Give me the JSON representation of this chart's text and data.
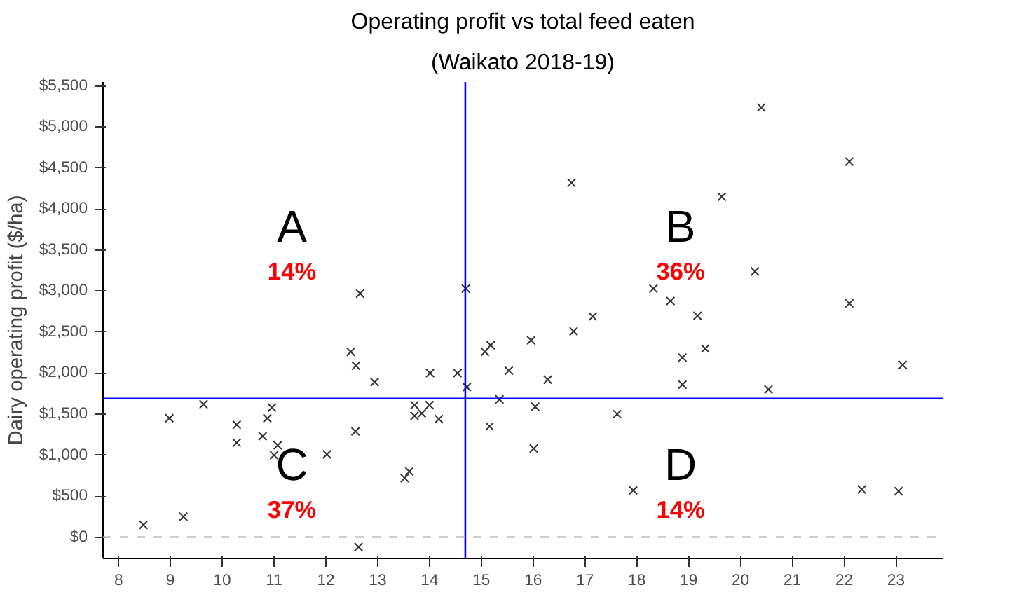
{
  "chart_data": {
    "type": "scatter",
    "title": "Operating profit vs total feed eaten",
    "subtitle": "(Waikato 2018-19)",
    "ylabel": "Dairy operating profit ($/ha)",
    "x": [
      8.48,
      8.98,
      9.25,
      9.64,
      10.28,
      10.28,
      10.78,
      10.87,
      10.96,
      11.0,
      11.07,
      12.02,
      12.48,
      12.58,
      12.94,
      12.57,
      12.63,
      12.66,
      13.52,
      13.61,
      13.71,
      13.71,
      13.85,
      14.0,
      14.18,
      14.01,
      14.54,
      14.72,
      14.7,
      15.07,
      15.18,
      15.96,
      16.78,
      15.53,
      16.28,
      15.35,
      16.04,
      15.16,
      16.01,
      17.62,
      17.93,
      18.88,
      19.32,
      18.88,
      20.54,
      23.13,
      22.34,
      23.05,
      20.4,
      22.1,
      19.64,
      16.74,
      20.28,
      22.1,
      18.32,
      18.65,
      19.17,
      17.15
    ],
    "series": [
      {
        "color": "#333333",
        "values": [
          150,
          1450,
          250,
          1620,
          1370,
          1150,
          1230,
          1450,
          1580,
          1000,
          1120,
          1010,
          2260,
          2090,
          1890,
          1290,
          -120,
          2970,
          720,
          800,
          1610,
          1480,
          1510,
          1610,
          1440,
          2000,
          2000,
          1830,
          3030,
          2260,
          2340,
          2400,
          2510,
          2030,
          1920,
          1680,
          1590,
          1350,
          1080,
          1500,
          570,
          2190,
          2300,
          1860,
          1800,
          2100,
          580,
          560,
          5240,
          4580,
          4150,
          4320,
          3240,
          2850,
          3030,
          2880,
          2700,
          2690
        ]
      }
    ],
    "marker": "cross",
    "grid": false,
    "xlim": [
      7.7,
      23.9
    ],
    "xticks": [
      8,
      9,
      10,
      11,
      12,
      13,
      14,
      15,
      16,
      17,
      18,
      19,
      20,
      21,
      22,
      23
    ],
    "ylim": [
      -260,
      5550
    ],
    "yticks": [
      {
        "value": 0,
        "label": "$0"
      },
      {
        "value": 500,
        "label": "$500"
      },
      {
        "value": 1000,
        "label": "$1,000"
      },
      {
        "value": 1500,
        "label": "$1,500"
      },
      {
        "value": 2000,
        "label": "$2,000"
      },
      {
        "value": 2500,
        "label": "$2,500"
      },
      {
        "value": 3000,
        "label": "$3,000"
      },
      {
        "value": 3500,
        "label": "$3,500"
      },
      {
        "value": 4000,
        "label": "$4,000"
      },
      {
        "value": 4500,
        "label": "$4,500"
      },
      {
        "value": 5000,
        "label": "$5,000"
      },
      {
        "value": 5500,
        "label": "$5,500"
      }
    ],
    "ref_lines": [
      {
        "axis": "x",
        "value": 14.69,
        "color": "#0000ff",
        "line_style": "solid"
      },
      {
        "axis": "y",
        "value": 1690,
        "color": "#0000ff",
        "line_style": "solid"
      },
      {
        "axis": "y",
        "value": 0,
        "color": "#bebebe",
        "line_style": "dashed"
      }
    ],
    "annotations": [
      "A",
      "14%",
      "B",
      "36%",
      "C",
      "37%",
      "D",
      "14%"
    ]
  }
}
